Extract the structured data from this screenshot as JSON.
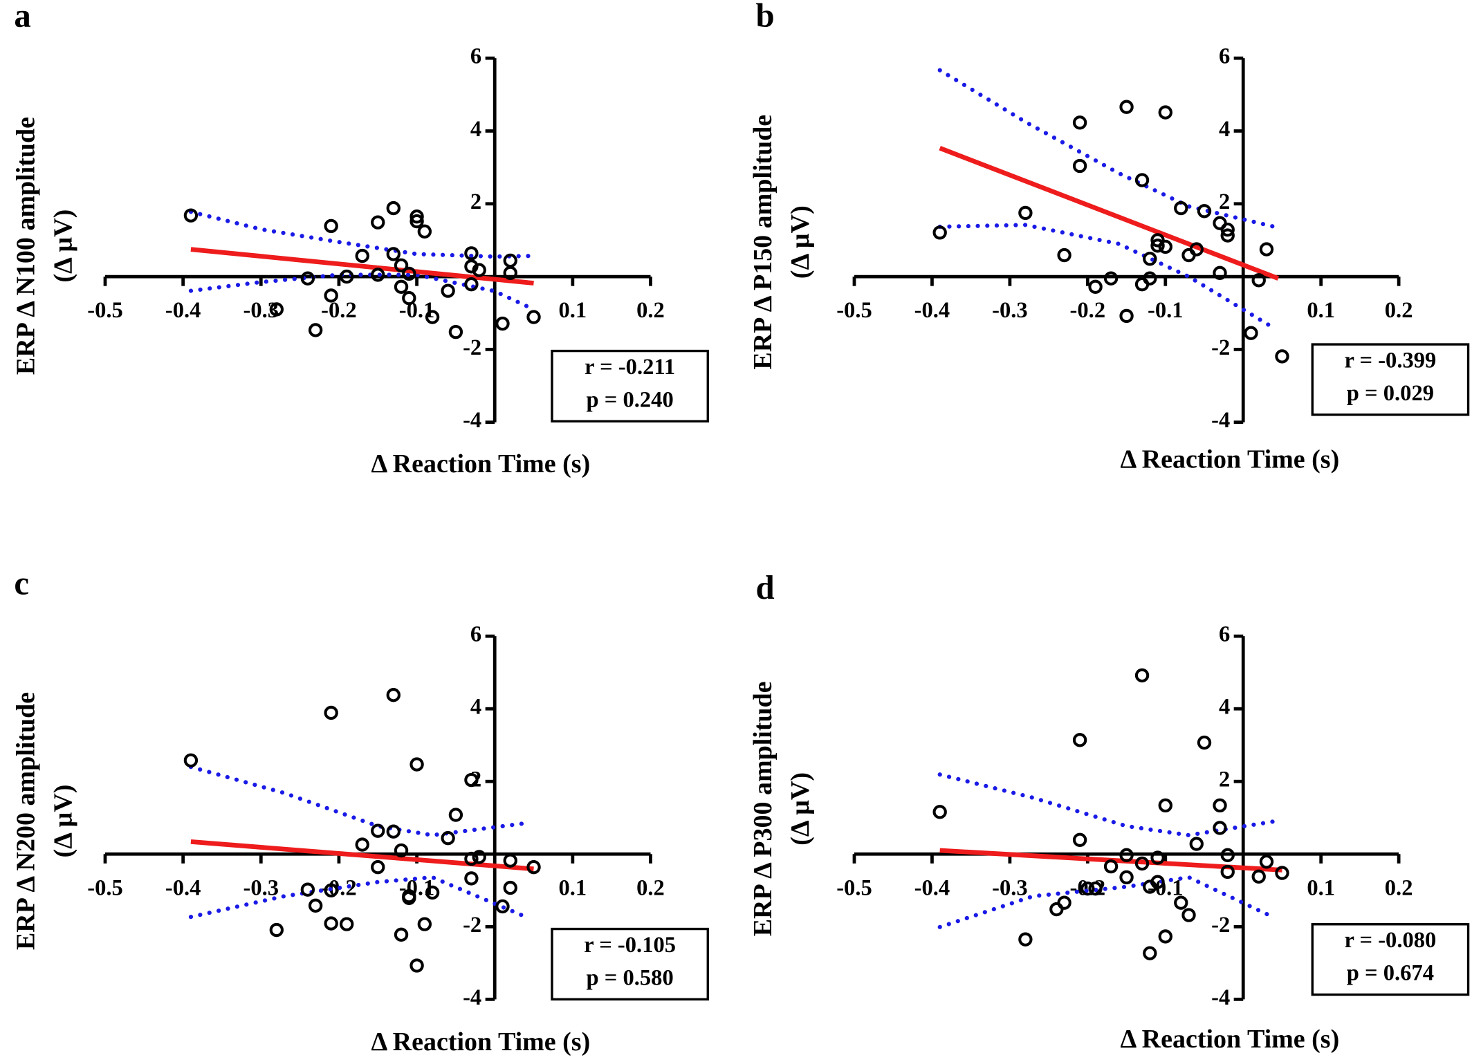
{
  "chart_data": [
    {
      "type": "scatter",
      "title": "a",
      "x_label": "Δ Reaction Time (s)",
      "y_label": [
        "ERP  Δ N100 amplitude",
        "(Δ µV)"
      ],
      "x": [
        -0.39,
        -0.21,
        -0.13,
        -0.15,
        -0.1,
        -0.1,
        -0.09,
        -0.17,
        -0.13,
        -0.12,
        -0.11,
        -0.19,
        -0.15,
        -0.24,
        -0.21,
        -0.23,
        -0.28,
        -0.12,
        -0.11,
        -0.08,
        -0.06,
        -0.05,
        -0.03,
        -0.03,
        -0.03,
        -0.02,
        0.02,
        0.02,
        0.01,
        0.05
      ],
      "y": [
        1.68,
        1.39,
        1.88,
        1.49,
        1.65,
        1.52,
        1.24,
        0.57,
        0.62,
        0.31,
        0.08,
        0.0,
        0.05,
        -0.05,
        -0.52,
        -1.47,
        -0.9,
        -0.28,
        -0.59,
        -1.11,
        -0.39,
        -1.52,
        -0.21,
        0.64,
        0.28,
        0.18,
        0.44,
        0.1,
        -1.29,
        -1.11
      ],
      "color": "#000000",
      "fit": {
        "x": [
          -0.39,
          0.05
        ],
        "y": [
          0.75,
          -0.18
        ],
        "color": "#ee1c1c"
      },
      "ci_upper": {
        "x": [
          -0.39,
          -0.3,
          -0.2,
          -0.1,
          0.0,
          0.05
        ],
        "y": [
          1.78,
          1.3,
          0.95,
          0.62,
          0.55,
          0.57
        ]
      },
      "ci_lower": {
        "x": [
          -0.39,
          -0.3,
          -0.2,
          -0.1,
          0.0,
          0.05
        ],
        "y": [
          -0.39,
          -0.15,
          0.05,
          0.05,
          -0.4,
          -0.9
        ]
      },
      "ci_color": "#1a1ae6",
      "annotations": [
        "r = -0.211",
        "p = 0.240"
      ],
      "xlim": [
        -0.5,
        0.2
      ],
      "ylim": [
        -4,
        6
      ],
      "xticks": [
        -0.5,
        -0.4,
        -0.3,
        -0.2,
        -0.1,
        0.1,
        0.2
      ],
      "yticks": [
        -4,
        -2,
        2,
        4,
        6
      ]
    },
    {
      "type": "scatter",
      "title": "b",
      "x_label": "Δ Reaction Time (s)",
      "y_label": [
        "ERP  Δ P150 amplitude",
        "(Δ µV)"
      ],
      "x": [
        -0.39,
        -0.28,
        -0.21,
        -0.21,
        -0.15,
        -0.1,
        -0.13,
        -0.08,
        -0.05,
        -0.03,
        -0.02,
        -0.02,
        -0.11,
        -0.11,
        -0.1,
        -0.12,
        -0.07,
        -0.06,
        -0.23,
        -0.17,
        -0.19,
        -0.13,
        -0.12,
        -0.15,
        -0.03,
        0.02,
        0.03,
        0.01,
        0.05
      ],
      "y": [
        1.21,
        1.75,
        4.23,
        3.04,
        4.66,
        4.51,
        2.65,
        1.88,
        1.8,
        1.47,
        1.29,
        1.13,
        1.0,
        0.85,
        0.82,
        0.49,
        0.59,
        0.75,
        0.59,
        -0.05,
        -0.28,
        -0.21,
        -0.05,
        -1.08,
        0.1,
        -0.1,
        0.75,
        -1.55,
        -2.19
      ],
      "color": "#000000",
      "fit": {
        "x": [
          -0.39,
          0.045
        ],
        "y": [
          3.53,
          -0.05
        ],
        "color": "#ee1c1c"
      },
      "ci_upper": {
        "x": [
          -0.39,
          -0.28,
          -0.16,
          -0.07,
          0.04
        ],
        "y": [
          5.67,
          4.25,
          2.84,
          1.93,
          1.37
        ]
      },
      "ci_lower": {
        "x": [
          -0.39,
          -0.28,
          -0.16,
          -0.07,
          0.04
        ],
        "y": [
          1.37,
          1.42,
          0.9,
          0.0,
          -1.42
        ]
      },
      "ci_color": "#1a1ae6",
      "annotations": [
        "r = -0.399",
        "p = 0.029"
      ],
      "xlim": [
        -0.5,
        0.2
      ],
      "ylim": [
        -4,
        6
      ],
      "xticks": [
        -0.5,
        -0.4,
        -0.3,
        -0.2,
        -0.1,
        0.1,
        0.2
      ],
      "yticks": [
        -4,
        -2,
        2,
        4,
        6
      ]
    },
    {
      "type": "scatter",
      "title": "c",
      "x_label": "Δ Reaction Time (s)",
      "y_label": [
        "ERP  Δ N200 amplitude",
        "(Δ µV)"
      ],
      "x": [
        -0.39,
        -0.21,
        -0.13,
        -0.1,
        -0.03,
        -0.05,
        -0.15,
        -0.13,
        -0.06,
        -0.17,
        -0.12,
        -0.15,
        -0.03,
        -0.02,
        0.02,
        0.05,
        -0.03,
        0.02,
        -0.24,
        -0.21,
        -0.23,
        -0.11,
        -0.11,
        -0.08,
        0.01,
        -0.28,
        -0.21,
        -0.19,
        -0.12,
        -0.09,
        -0.1
      ],
      "y": [
        2.58,
        3.89,
        4.38,
        2.47,
        2.04,
        1.08,
        0.64,
        0.62,
        0.44,
        0.26,
        0.1,
        -0.36,
        -0.13,
        -0.08,
        -0.18,
        -0.36,
        -0.67,
        -0.93,
        -0.98,
        -1.0,
        -1.42,
        -1.16,
        -1.21,
        -1.06,
        -1.44,
        -2.09,
        -1.91,
        -1.93,
        -2.22,
        -1.93,
        -3.07
      ],
      "color": "#000000",
      "fit": {
        "x": [
          -0.39,
          0.05
        ],
        "y": [
          0.34,
          -0.41
        ],
        "color": "#ee1c1c"
      },
      "ci_upper": {
        "x": [
          -0.39,
          -0.27,
          -0.15,
          -0.08,
          0.04
        ],
        "y": [
          2.4,
          1.68,
          0.77,
          0.52,
          0.85
        ]
      },
      "ci_lower": {
        "x": [
          -0.39,
          -0.27,
          -0.15,
          -0.08,
          0.04
        ],
        "y": [
          -1.73,
          -1.16,
          -0.77,
          -0.64,
          -1.73
        ]
      },
      "ci_color": "#1a1ae6",
      "annotations": [
        "r = -0.105",
        "p = 0.580"
      ],
      "xlim": [
        -0.5,
        0.2
      ],
      "ylim": [
        -4,
        6
      ],
      "xticks": [
        -0.5,
        -0.4,
        -0.3,
        -0.2,
        -0.1,
        0.1,
        0.2
      ],
      "yticks": [
        -4,
        -2,
        2,
        4,
        6
      ]
    },
    {
      "type": "scatter",
      "title": "d",
      "x_label": "Δ Reaction Time (s)",
      "y_label": [
        "ERP  Δ P300 amplitude",
        "(Δ µV)"
      ],
      "x": [
        -0.39,
        -0.21,
        -0.13,
        -0.05,
        -0.1,
        -0.03,
        -0.03,
        -0.06,
        -0.21,
        -0.02,
        -0.15,
        -0.11,
        -0.17,
        -0.13,
        0.03,
        -0.02,
        0.05,
        0.02,
        -0.15,
        -0.11,
        -0.12,
        -0.19,
        -0.2,
        -0.08,
        -0.07,
        -0.23,
        -0.24,
        -0.28,
        -0.1,
        -0.12
      ],
      "y": [
        1.16,
        3.14,
        4.92,
        3.07,
        1.34,
        1.34,
        0.72,
        0.28,
        0.39,
        -0.03,
        -0.03,
        -0.1,
        -0.34,
        -0.26,
        -0.21,
        -0.49,
        -0.52,
        -0.62,
        -0.64,
        -0.77,
        -0.9,
        -0.95,
        -0.95,
        -1.34,
        -1.68,
        -1.34,
        -1.52,
        -2.35,
        -2.27,
        -2.73
      ],
      "color": "#000000",
      "fit": {
        "x": [
          -0.39,
          0.05
        ],
        "y": [
          0.1,
          -0.44
        ],
        "color": "#ee1c1c"
      },
      "ci_upper": {
        "x": [
          -0.39,
          -0.27,
          -0.15,
          -0.07,
          0.04
        ],
        "y": [
          2.19,
          1.55,
          0.77,
          0.52,
          0.9
        ]
      },
      "ci_lower": {
        "x": [
          -0.39,
          -0.27,
          -0.15,
          -0.07,
          0.04
        ],
        "y": [
          -2.01,
          -1.16,
          -0.9,
          -0.64,
          -1.75
        ]
      },
      "ci_color": "#1a1ae6",
      "annotations": [
        "r = -0.080",
        "p = 0.674"
      ],
      "xlim": [
        -0.5,
        0.2
      ],
      "ylim": [
        -4,
        6
      ],
      "xticks": [
        -0.5,
        -0.4,
        -0.3,
        -0.2,
        -0.1,
        0.1,
        0.2
      ],
      "yticks": [
        -4,
        -2,
        2,
        4,
        6
      ]
    }
  ]
}
